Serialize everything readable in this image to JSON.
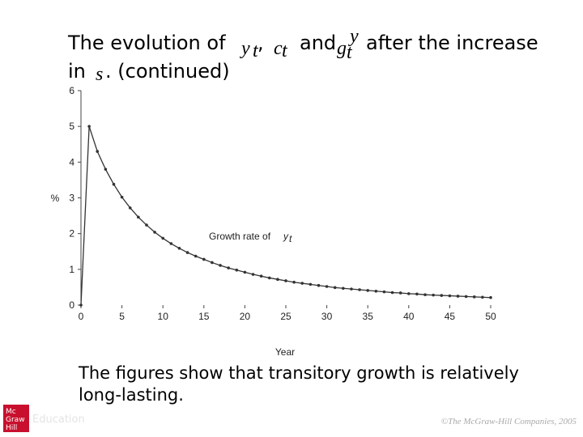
{
  "slide": {
    "title_line1": [
      "The evolution of",
      "y",
      "t",
      ",",
      "c",
      "t",
      "and",
      "g",
      "t",
      "y",
      "after the increase"
    ],
    "title_line2": [
      "in",
      "s",
      ". (continued)"
    ],
    "body_lines": [
      "The figures show that transitory growth is relatively",
      "long-lasting."
    ],
    "logo": [
      "Mc",
      "Graw",
      "Hill",
      "Education"
    ],
    "footer": "©The McGraw-Hill Companies, 2005"
  },
  "chart_data": {
    "type": "line",
    "ylabel": "%",
    "xlabel": "Year",
    "annotation": [
      "Growth rate of",
      "y",
      "t"
    ],
    "x": [
      0,
      1,
      2,
      3,
      4,
      5,
      6,
      7,
      8,
      9,
      10,
      11,
      12,
      13,
      14,
      15,
      16,
      17,
      18,
      19,
      20,
      21,
      22,
      23,
      24,
      25,
      26,
      27,
      28,
      29,
      30,
      31,
      32,
      33,
      34,
      35,
      36,
      37,
      38,
      39,
      40,
      41,
      42,
      43,
      44,
      45,
      46,
      47,
      48,
      49,
      50
    ],
    "series": [
      {
        "name": "Growth rate of y",
        "color": "#333333",
        "values": [
          0,
          5.0,
          4.3,
          3.8,
          3.38,
          3.02,
          2.72,
          2.46,
          2.24,
          2.04,
          1.87,
          1.72,
          1.59,
          1.47,
          1.37,
          1.28,
          1.19,
          1.11,
          1.04,
          0.98,
          0.92,
          0.86,
          0.81,
          0.76,
          0.72,
          0.68,
          0.64,
          0.61,
          0.58,
          0.55,
          0.52,
          0.49,
          0.47,
          0.45,
          0.43,
          0.41,
          0.39,
          0.37,
          0.35,
          0.34,
          0.32,
          0.31,
          0.29,
          0.28,
          0.27,
          0.26,
          0.25,
          0.24,
          0.23,
          0.22,
          0.21
        ]
      }
    ],
    "xlim": [
      0,
      50
    ],
    "ylim": [
      0,
      6
    ],
    "xticks": [
      0,
      5,
      10,
      15,
      20,
      25,
      30,
      35,
      40,
      45,
      50
    ],
    "yticks": [
      0,
      1,
      2,
      3,
      4,
      5,
      6
    ]
  }
}
